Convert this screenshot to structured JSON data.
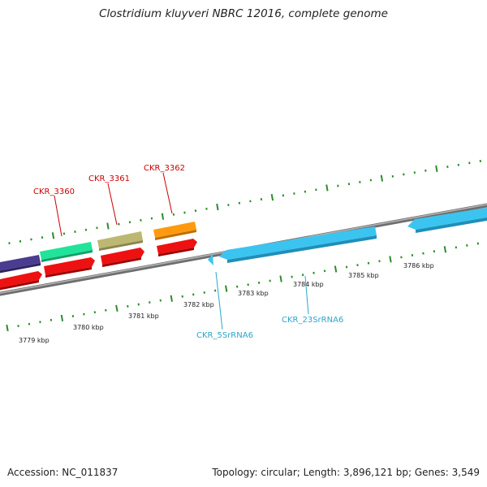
{
  "title": "Clostridium kluyveri NBRC 12016, complete genome",
  "accession": "Accession: NC_011837",
  "summary": "Topology: circular; Length: 3,896,121 bp; Genes: 3,549",
  "colors": {
    "backbone": "#888888",
    "tick": "#2e8b2e",
    "red_label": "#cc0000",
    "cyan_label": "#2aa6c9",
    "purple": "#4a3d8f",
    "teal_green": "#22e39a",
    "khaki": "#bcb872",
    "orange": "#ff9a10",
    "red": "#ee1111",
    "sky": "#3cc4f0"
  },
  "kbp_labels": [
    "3779 kbp",
    "3780 kbp",
    "3781 kbp",
    "3782 kbp",
    "3783 kbp",
    "3784 kbp",
    "3785 kbp",
    "3786 kbp"
  ],
  "gene_labels": {
    "ckr_3360": "CKR_3360",
    "ckr_3361": "CKR_3361",
    "ckr_3362": "CKR_3362",
    "ckr_5s": "CKR_5SrRNA6",
    "ckr_23s": "CKR_23SrRNA6"
  }
}
